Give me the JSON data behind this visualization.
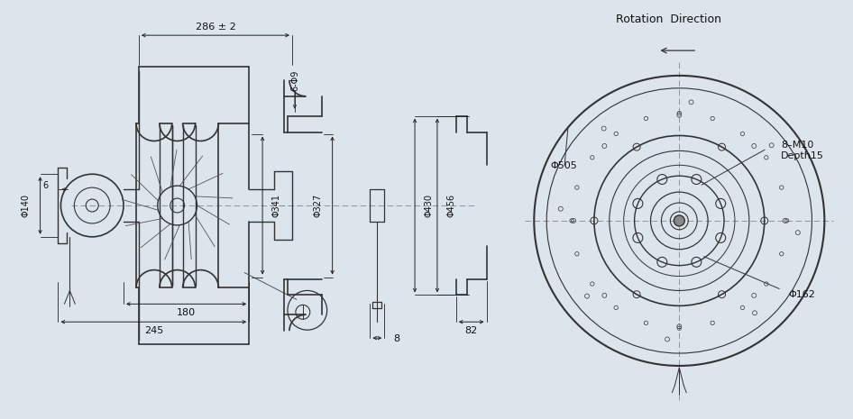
{
  "bg_color": "#dce4ec",
  "line_color": "#333333",
  "dim_color": "#222222",
  "text_color": "#111111",
  "centerline_color": "#888888",
  "title": "Rotation  Direction",
  "annotations": {
    "phi505": "Φ505",
    "phi341": "Φ341",
    "phi327": "Φ327",
    "phi430": "Φ430",
    "phi456": "Φ456",
    "phi140": "Φ140",
    "phi162": "Φ162",
    "dim_286": "286 ± 2",
    "dim_180": "180",
    "dim_245": "245",
    "dim_6": "6",
    "dim_82": "82",
    "dim_8": "8",
    "dim_6phi9": "6-Φ9",
    "label_8m10": "8–M10",
    "label_depth15": "Depth15"
  }
}
